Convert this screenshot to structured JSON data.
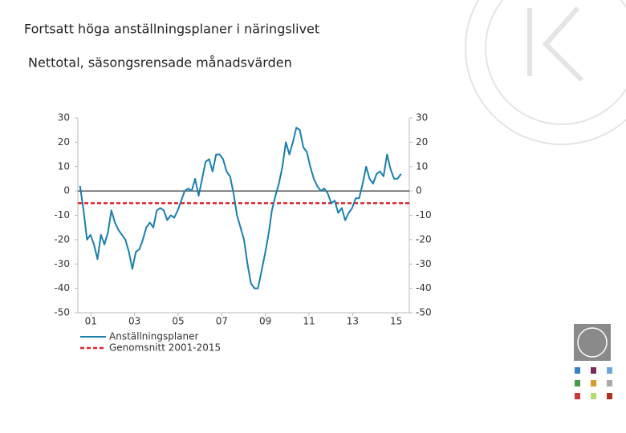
{
  "chart_data": {
    "type": "line",
    "title": "Fortsatt höga anställningsplaner i näringslivet",
    "subtitle": "Nettotal, säsongsrensade månadsvärden",
    "x": [
      2001.0,
      2001.16,
      2001.32,
      2001.48,
      2001.64,
      2001.8,
      2001.96,
      2002.12,
      2002.28,
      2002.44,
      2002.6,
      2002.76,
      2002.92,
      2003.08,
      2003.24,
      2003.4,
      2003.56,
      2003.72,
      2003.88,
      2004.04,
      2004.2,
      2004.36,
      2004.52,
      2004.68,
      2004.84,
      2005.0,
      2005.16,
      2005.32,
      2005.48,
      2005.64,
      2005.8,
      2005.96,
      2006.12,
      2006.28,
      2006.44,
      2006.6,
      2006.76,
      2006.92,
      2007.08,
      2007.24,
      2007.4,
      2007.56,
      2007.72,
      2007.88,
      2008.04,
      2008.2,
      2008.36,
      2008.52,
      2008.68,
      2008.84,
      2009.0,
      2009.16,
      2009.32,
      2009.48,
      2009.64,
      2009.8,
      2009.96,
      2010.12,
      2010.28,
      2010.44,
      2010.6,
      2010.76,
      2010.92,
      2011.08,
      2011.24,
      2011.4,
      2011.56,
      2011.72,
      2011.88,
      2012.04,
      2012.2,
      2012.36,
      2012.52,
      2012.68,
      2012.84,
      2013.0,
      2013.16,
      2013.32,
      2013.48,
      2013.64,
      2013.8,
      2013.96,
      2014.12,
      2014.28,
      2014.44,
      2014.6,
      2014.76,
      2014.92,
      2015.08,
      2015.24,
      2015.4,
      2015.56,
      2015.72
    ],
    "series": [
      {
        "name": "Anställningsplaner",
        "color": "#1a7fae",
        "values": [
          2,
          -8,
          -20,
          -18,
          -22,
          -28,
          -18,
          -22,
          -17,
          -8,
          -13,
          -16,
          -18,
          -20,
          -25,
          -32,
          -25,
          -24,
          -20,
          -15,
          -13,
          -15,
          -8,
          -7,
          -8,
          -12,
          -10,
          -11,
          -8,
          -4,
          0,
          1,
          0,
          5,
          -2,
          5,
          12,
          13,
          8,
          15,
          15,
          13,
          8,
          6,
          -1,
          -10,
          -15,
          -20,
          -30,
          -38,
          -40,
          -40,
          -33,
          -26,
          -18,
          -8,
          -2,
          3,
          10,
          20,
          15,
          20,
          26,
          25,
          18,
          16,
          10,
          5,
          2,
          0,
          1,
          -1,
          -5,
          -4,
          -9,
          -7,
          -12,
          -9,
          -7,
          -3,
          -3,
          3,
          10,
          5,
          3,
          7,
          8,
          6,
          15,
          9,
          5,
          5,
          7
        ]
      }
    ],
    "average_line": {
      "name": "Genomsnitt 2001-2015",
      "color": "#d9262c",
      "value": -5
    },
    "xlim": [
      2000.9,
      2016.1
    ],
    "xticks": [
      {
        "value": 2001.5,
        "label": "01"
      },
      {
        "value": 2003.5,
        "label": "03"
      },
      {
        "value": 2005.5,
        "label": "05"
      },
      {
        "value": 2007.5,
        "label": "07"
      },
      {
        "value": 2009.5,
        "label": "09"
      },
      {
        "value": 2011.5,
        "label": "11"
      },
      {
        "value": 2013.5,
        "label": "13"
      },
      {
        "value": 2015.5,
        "label": "15"
      }
    ],
    "ylim": [
      -50,
      30
    ],
    "yticks": [
      -50,
      -40,
      -30,
      -20,
      -10,
      0,
      10,
      20,
      30
    ],
    "y2lim": [
      -50,
      30
    ],
    "y2ticks": [
      -50,
      -40,
      -30,
      -20,
      -10,
      0,
      10,
      20,
      30
    ],
    "grid": false
  }
}
